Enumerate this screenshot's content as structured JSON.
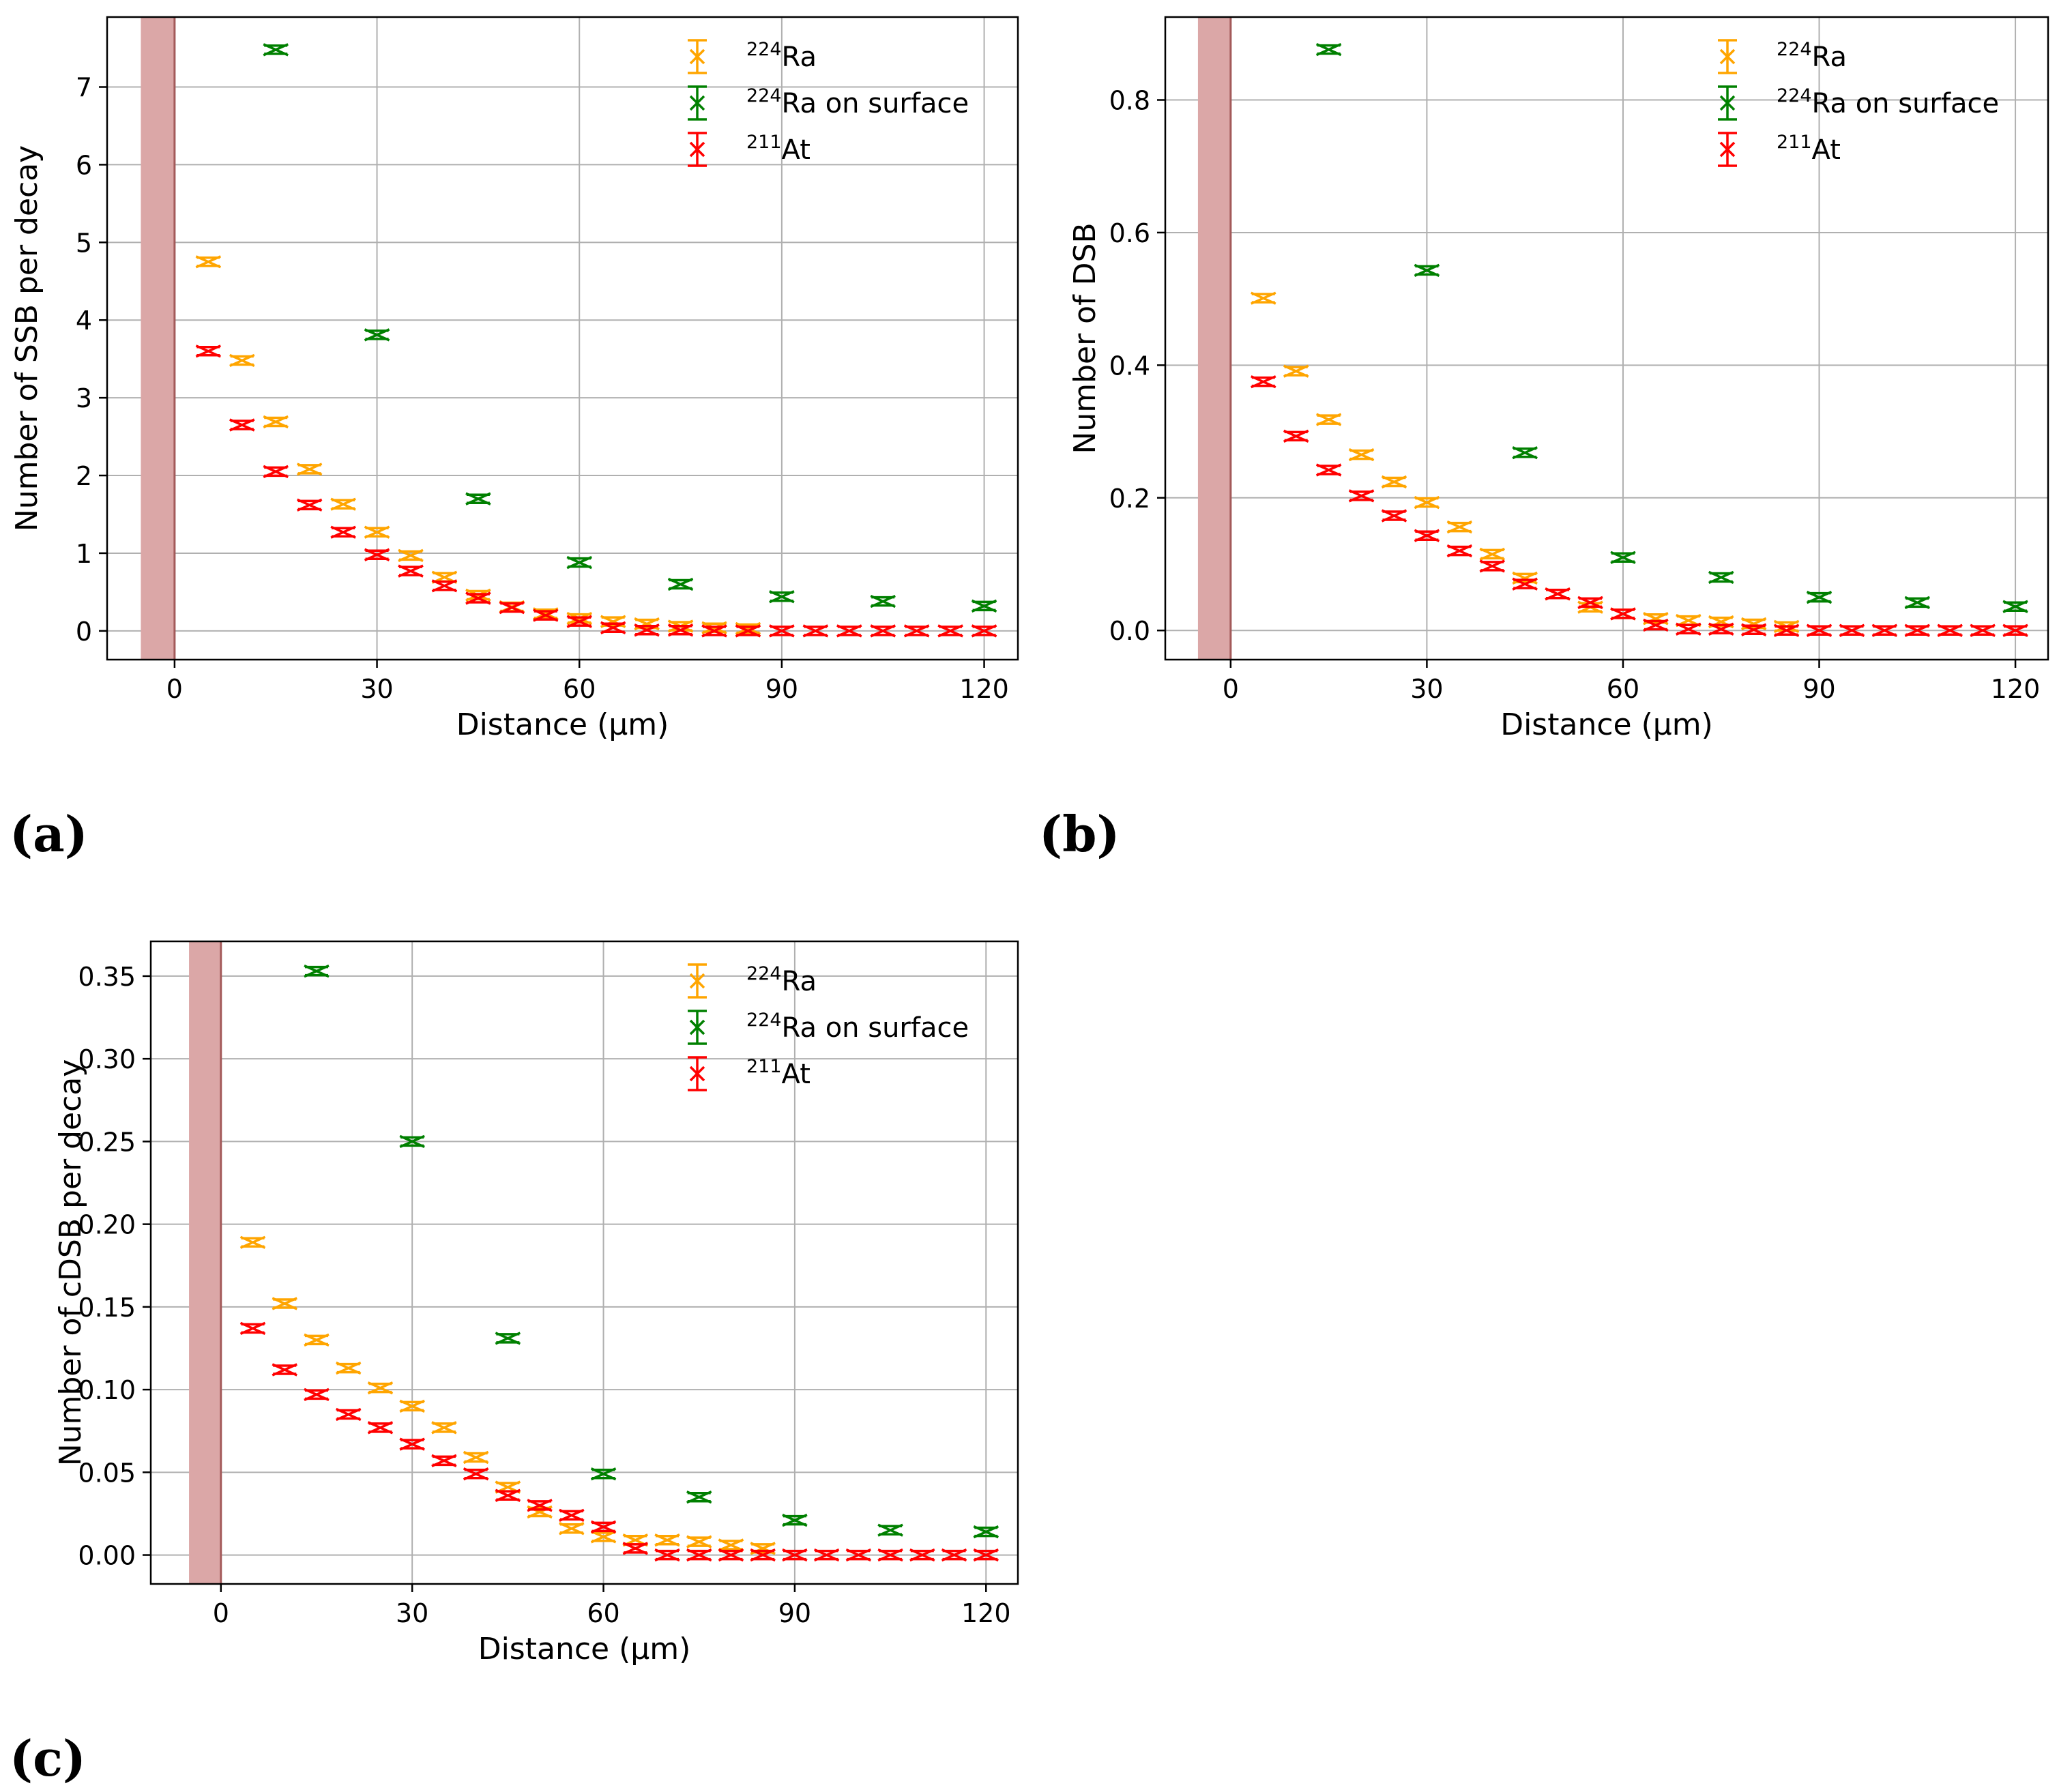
{
  "colors": {
    "ra224": "#ffa500",
    "ra224_surface": "#008000",
    "at211": "#ff0000",
    "band_fill": "#dba7a7",
    "band_line": "#a35a5a",
    "grid": "#b0b0b0"
  },
  "labels": {
    "a": "(a)",
    "b": "(b)",
    "c": "(c)"
  },
  "legend": {
    "ra_sup": "224",
    "ra_text": "Ra",
    "ras_sup": "224",
    "ras_text": "Ra on surface",
    "at_sup": "211",
    "at_text": "At"
  },
  "chart_data": [
    {
      "id": "a",
      "type": "scatter",
      "title": "",
      "xlabel": "Distance (μm)",
      "ylabel": "Number of SSB per decay",
      "xlim": [
        -10,
        125
      ],
      "ylim": [
        -0.37,
        7.9
      ],
      "xticks": [
        0,
        30,
        60,
        90,
        120
      ],
      "yticks": [
        0,
        1,
        2,
        3,
        4,
        5,
        6,
        7
      ],
      "ytick_labels": [
        "0",
        "1",
        "2",
        "3",
        "4",
        "5",
        "6",
        "7"
      ],
      "grid": true,
      "shaded_band": [
        -5,
        0
      ],
      "legend_position": "top-right",
      "series": [
        {
          "name": "224Ra",
          "color_key": "ra224",
          "x": [
            5,
            10,
            15,
            20,
            25,
            30,
            35,
            40,
            45,
            50,
            55,
            60,
            65,
            70,
            75,
            80,
            85
          ],
          "y": [
            4.75,
            3.48,
            2.69,
            2.08,
            1.63,
            1.27,
            0.97,
            0.69,
            0.46,
            0.31,
            0.22,
            0.16,
            0.12,
            0.09,
            0.06,
            0.04,
            0.03
          ]
        },
        {
          "name": "224Ra on surface",
          "color_key": "ra224_surface",
          "x": [
            15,
            30,
            45,
            60,
            75,
            90,
            105,
            120
          ],
          "y": [
            7.48,
            3.81,
            1.7,
            0.88,
            0.6,
            0.44,
            0.38,
            0.32
          ]
        },
        {
          "name": "211At",
          "color_key": "at211",
          "x": [
            5,
            10,
            15,
            20,
            25,
            30,
            35,
            40,
            45,
            50,
            55,
            60,
            65,
            70,
            75,
            80,
            85,
            90,
            95,
            100,
            105,
            110,
            115,
            120
          ],
          "y": [
            3.6,
            2.65,
            2.05,
            1.62,
            1.27,
            0.98,
            0.77,
            0.58,
            0.42,
            0.3,
            0.2,
            0.12,
            0.04,
            0.01,
            0.01,
            0.0,
            0.0,
            0.0,
            0.0,
            0.0,
            0.0,
            0.0,
            0.0,
            0.0
          ]
        }
      ]
    },
    {
      "id": "b",
      "type": "scatter",
      "title": "",
      "xlabel": "Distance (μm)",
      "ylabel": "Number of DSB",
      "xlim": [
        -10,
        125
      ],
      "ylim": [
        -0.044,
        0.925
      ],
      "xticks": [
        0,
        30,
        60,
        90,
        120
      ],
      "yticks": [
        0,
        0.2,
        0.4,
        0.6,
        0.8
      ],
      "ytick_labels": [
        "0.0",
        "0.2",
        "0.4",
        "0.6",
        "0.8"
      ],
      "grid": true,
      "shaded_band": [
        -5,
        0
      ],
      "legend_position": "top-right",
      "series": [
        {
          "name": "224Ra",
          "color_key": "ra224",
          "x": [
            5,
            10,
            15,
            20,
            25,
            30,
            35,
            40,
            45,
            50,
            55,
            60,
            65,
            70,
            75,
            80,
            85
          ],
          "y": [
            0.501,
            0.391,
            0.318,
            0.265,
            0.224,
            0.193,
            0.156,
            0.115,
            0.079,
            0.055,
            0.035,
            0.025,
            0.018,
            0.015,
            0.013,
            0.01,
            0.006
          ]
        },
        {
          "name": "224Ra on surface",
          "color_key": "ra224_surface",
          "x": [
            15,
            30,
            45,
            60,
            75,
            90,
            105,
            120
          ],
          "y": [
            0.876,
            0.543,
            0.268,
            0.11,
            0.08,
            0.05,
            0.042,
            0.036
          ]
        },
        {
          "name": "211At",
          "color_key": "at211",
          "x": [
            5,
            10,
            15,
            20,
            25,
            30,
            35,
            40,
            45,
            50,
            55,
            60,
            65,
            70,
            75,
            80,
            85,
            90,
            95,
            100,
            105,
            110,
            115,
            120
          ],
          "y": [
            0.375,
            0.293,
            0.242,
            0.203,
            0.173,
            0.143,
            0.12,
            0.097,
            0.07,
            0.055,
            0.042,
            0.025,
            0.008,
            0.002,
            0.002,
            0.001,
            0.0,
            0.0,
            0.0,
            0.0,
            0.0,
            0.0,
            0.0,
            0.0
          ]
        }
      ]
    },
    {
      "id": "c",
      "type": "scatter",
      "title": "",
      "xlabel": "Distance (μm)",
      "ylabel": "Number of cDSB per decay",
      "xlim": [
        -11,
        125
      ],
      "ylim": [
        -0.0175,
        0.371
      ],
      "xticks": [
        0,
        30,
        60,
        90,
        120
      ],
      "yticks": [
        0,
        0.05,
        0.1,
        0.15,
        0.2,
        0.25,
        0.3,
        0.35
      ],
      "ytick_labels": [
        "0.00",
        "0.05",
        "0.10",
        "0.15",
        "0.20",
        "0.25",
        "0.30",
        "0.35"
      ],
      "grid": true,
      "shaded_band": [
        -5,
        0
      ],
      "legend_position": "top-right",
      "series": [
        {
          "name": "224Ra",
          "color_key": "ra224",
          "x": [
            5,
            10,
            15,
            20,
            25,
            30,
            35,
            40,
            45,
            50,
            55,
            60,
            65,
            70,
            75,
            80,
            85
          ],
          "y": [
            0.189,
            0.152,
            0.13,
            0.113,
            0.101,
            0.09,
            0.077,
            0.059,
            0.041,
            0.026,
            0.016,
            0.011,
            0.009,
            0.009,
            0.008,
            0.006,
            0.004
          ]
        },
        {
          "name": "224Ra on surface",
          "color_key": "ra224_surface",
          "x": [
            15,
            30,
            45,
            60,
            75,
            90,
            105,
            120
          ],
          "y": [
            0.353,
            0.25,
            0.131,
            0.049,
            0.035,
            0.021,
            0.015,
            0.014
          ]
        },
        {
          "name": "211At",
          "color_key": "at211",
          "x": [
            5,
            10,
            15,
            20,
            25,
            30,
            35,
            40,
            45,
            50,
            55,
            60,
            65,
            70,
            75,
            80,
            85,
            90,
            95,
            100,
            105,
            110,
            115,
            120
          ],
          "y": [
            0.137,
            0.112,
            0.097,
            0.085,
            0.077,
            0.067,
            0.057,
            0.049,
            0.036,
            0.03,
            0.024,
            0.017,
            0.004,
            0.0,
            0.0,
            0.0,
            0.0,
            0.0,
            0.0,
            0.0,
            0.0,
            0.0,
            0.0,
            0.0
          ]
        }
      ]
    }
  ]
}
